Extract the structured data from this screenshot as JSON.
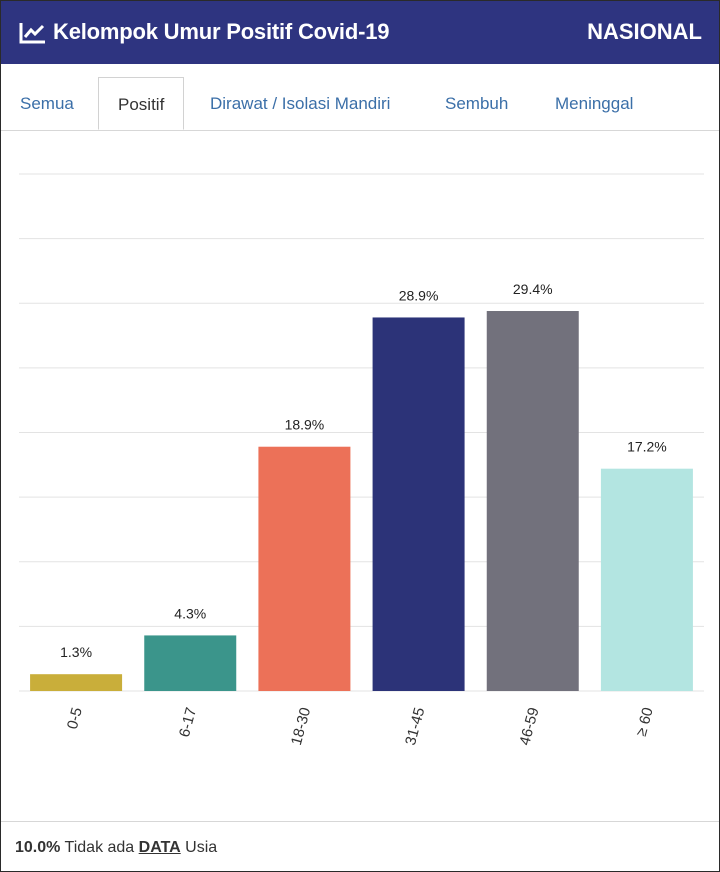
{
  "header": {
    "title": "Kelompok Umur Positif Covid-19",
    "scope": "NASIONAL",
    "icon": "line-chart-icon"
  },
  "tabs": [
    {
      "label": "Semua"
    },
    {
      "label": "Positif",
      "active": true
    },
    {
      "label": "Dirawat / Isolasi Mandiri"
    },
    {
      "label": "Sembuh"
    },
    {
      "label": "Meninggal"
    }
  ],
  "chart_data": {
    "type": "bar",
    "categories": [
      "0-5",
      "6-17",
      "18-30",
      "31-45",
      "46-59",
      "≥ 60"
    ],
    "values": [
      1.3,
      4.3,
      18.9,
      28.9,
      29.4,
      17.2
    ],
    "data_labels": [
      "1.3%",
      "4.3%",
      "18.9%",
      "28.9%",
      "29.4%",
      "17.2%"
    ],
    "colors": [
      "#c9ae3a",
      "#3b958b",
      "#ec7158",
      "#2c3378",
      "#72717c",
      "#b3e5e1"
    ],
    "ylim": [
      0,
      40
    ],
    "grid": true,
    "gridline_count": 8
  },
  "footer": {
    "value": "10.0%",
    "text1": "Tidak ada",
    "link": "DATA",
    "text2": "Usia"
  }
}
